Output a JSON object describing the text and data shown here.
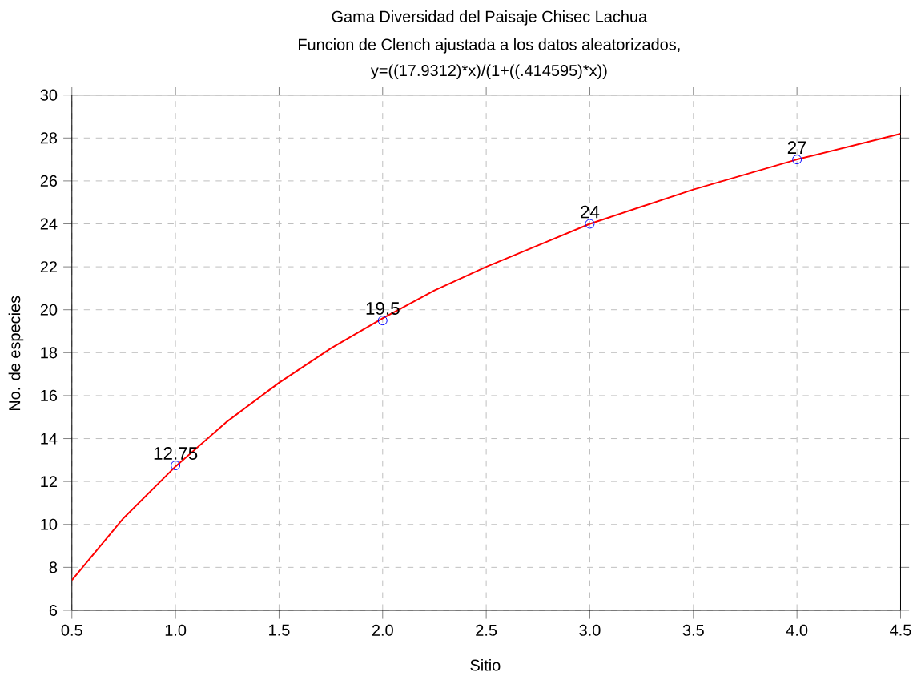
{
  "chart_data": {
    "type": "scatter",
    "title": "Gama Diversidad del Paisaje Chisec Lachua",
    "subtitle": "Funcion de Clench ajustada a los datos aleatorizados,",
    "annotations": [
      "y=((17.9312)*x)/(1+((.414595)*x))"
    ],
    "xlabel": "Sitio",
    "ylabel": "No. de especies",
    "series": [
      {
        "type": "line",
        "color": "#ff0000",
        "marker": "none",
        "x": [
          0.5,
          0.75,
          1.0,
          1.25,
          1.5,
          1.75,
          2.0,
          2.25,
          2.5,
          2.75,
          3.0,
          3.25,
          3.5,
          3.75,
          4.0,
          4.25,
          4.5
        ],
        "values": [
          7.4,
          10.3,
          12.7,
          14.8,
          16.6,
          18.2,
          19.6,
          20.9,
          22.0,
          23.0,
          24.0,
          24.8,
          25.6,
          26.3,
          27.0,
          27.6,
          28.2
        ]
      },
      {
        "color": "#0000ff",
        "marker": "circle",
        "x": [
          1,
          2,
          3,
          4
        ],
        "values": [
          12.75,
          19.5,
          24,
          27
        ],
        "value_labels": [
          "12.75",
          "19.5",
          "24",
          "27"
        ]
      }
    ],
    "xlim": [
      0.5,
      4.5
    ],
    "ylim": [
      6,
      30
    ],
    "xticks": [
      0.5,
      {
        "value": 1,
        "label": "1.0"
      },
      1.5,
      {
        "value": 2,
        "label": "2.0"
      },
      2.5,
      {
        "value": 3,
        "label": "3.0"
      },
      3.5,
      {
        "value": 4,
        "label": "4.0"
      },
      4.5
    ],
    "yticks": [
      6,
      8,
      10,
      12,
      14,
      16,
      18,
      20,
      22,
      24,
      26,
      28,
      30
    ],
    "grid": true
  }
}
